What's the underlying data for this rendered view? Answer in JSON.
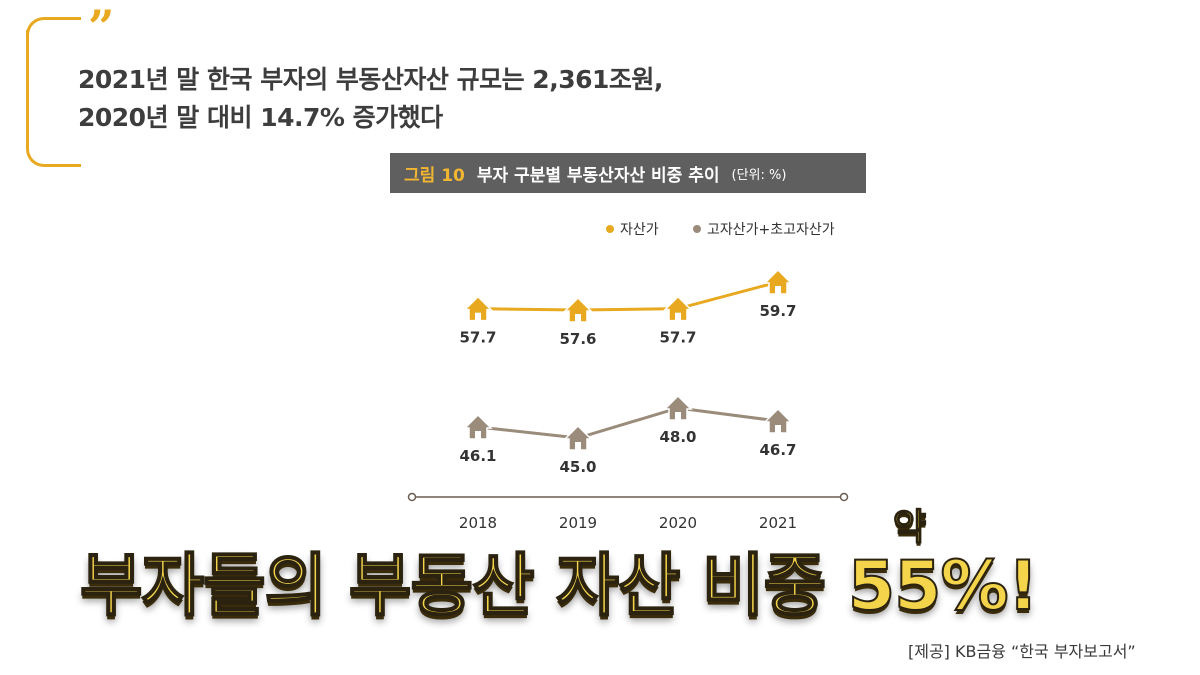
{
  "quote": {
    "line1": "2021년 말 한국 부자의 부동산자산 규모는 2,361조원,",
    "line2": "2020년 말 대비 14.7% 증가했다"
  },
  "figure": {
    "number": "그림 10",
    "title": "부자 구분별 부동산자산 비중 추이",
    "unit": "(단위: %)"
  },
  "chart_data": {
    "type": "line",
    "categories": [
      "2018",
      "2019",
      "2020",
      "2021"
    ],
    "series": [
      {
        "name": "자산가",
        "values": [
          57.7,
          57.6,
          57.7,
          59.7
        ],
        "color": "#e8a920"
      },
      {
        "name": "고자산가+초고자산가",
        "values": [
          46.1,
          45.0,
          48.0,
          46.7
        ],
        "color": "#9a8b7a"
      }
    ],
    "value_labels": {
      "자산가": [
        "57.7",
        "57.6",
        "57.7",
        "59.7"
      ],
      "고자산가+초고자산가": [
        "46.1",
        "45.0",
        "48.0",
        "46.7"
      ]
    },
    "legend_position": "top-right",
    "marker": "house-icon",
    "axis_break": true,
    "grid": false
  },
  "headline": {
    "text": "부자들의 부동산 자산 비중 55%!",
    "badge": "약"
  },
  "source": "[제공] KB금융 “한국 부자보고서”"
}
